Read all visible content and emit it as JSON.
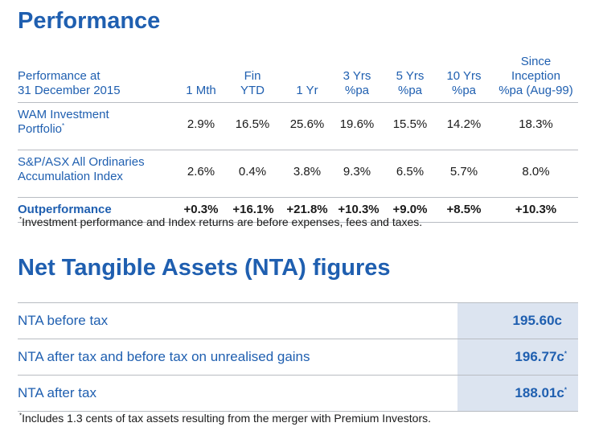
{
  "performance": {
    "title": "Performance",
    "header": {
      "label_line1": "Performance at",
      "label_line2": "31 December 2015",
      "columns": [
        {
          "l1": "",
          "l2": "",
          "l3": "1 Mth"
        },
        {
          "l1": "",
          "l2": "Fin",
          "l3": "YTD"
        },
        {
          "l1": "",
          "l2": "",
          "l3": "1 Yr"
        },
        {
          "l1": "",
          "l2": "3 Yrs",
          "l3": "%pa"
        },
        {
          "l1": "",
          "l2": "5 Yrs",
          "l3": "%pa"
        },
        {
          "l1": "",
          "l2": "10 Yrs",
          "l3": "%pa"
        },
        {
          "l1": "Since",
          "l2": "Inception",
          "l3": "%pa (Aug-99)"
        }
      ]
    },
    "rows": [
      {
        "label_line1": "WAM Investment",
        "label_line2": "Portfolio",
        "label_sup": "*",
        "values": [
          "2.9%",
          "16.5%",
          "25.6%",
          "19.6%",
          "15.5%",
          "14.2%",
          "18.3%"
        ]
      },
      {
        "label_line1": "S&P/ASX All Ordinaries",
        "label_line2": "Accumulation Index",
        "label_sup": "",
        "values": [
          "2.6%",
          "0.4%",
          "3.8%",
          "9.3%",
          "6.5%",
          "5.7%",
          "8.0%"
        ]
      }
    ],
    "outperformance": {
      "label": "Outperformance",
      "values": [
        "+0.3%",
        "+16.1%",
        "+21.8%",
        "+10.3%",
        "+9.0%",
        "+8.5%",
        "+10.3%"
      ]
    },
    "note_marker": "*",
    "note": "Investment performance and Index returns are before expenses, fees and taxes."
  },
  "nta": {
    "title": "Net Tangible Assets (NTA) figures",
    "rows": [
      {
        "label": "NTA before tax",
        "value": "195.60c",
        "sup": ""
      },
      {
        "label": "NTA after tax and before tax on unrealised gains",
        "value": "196.77c",
        "sup": "*"
      },
      {
        "label": "NTA after tax",
        "value": "188.01c",
        "sup": "*"
      }
    ],
    "note_marker": "*",
    "note": "Includes 1.3 cents of tax assets resulting from the merger with Premium Investors."
  }
}
